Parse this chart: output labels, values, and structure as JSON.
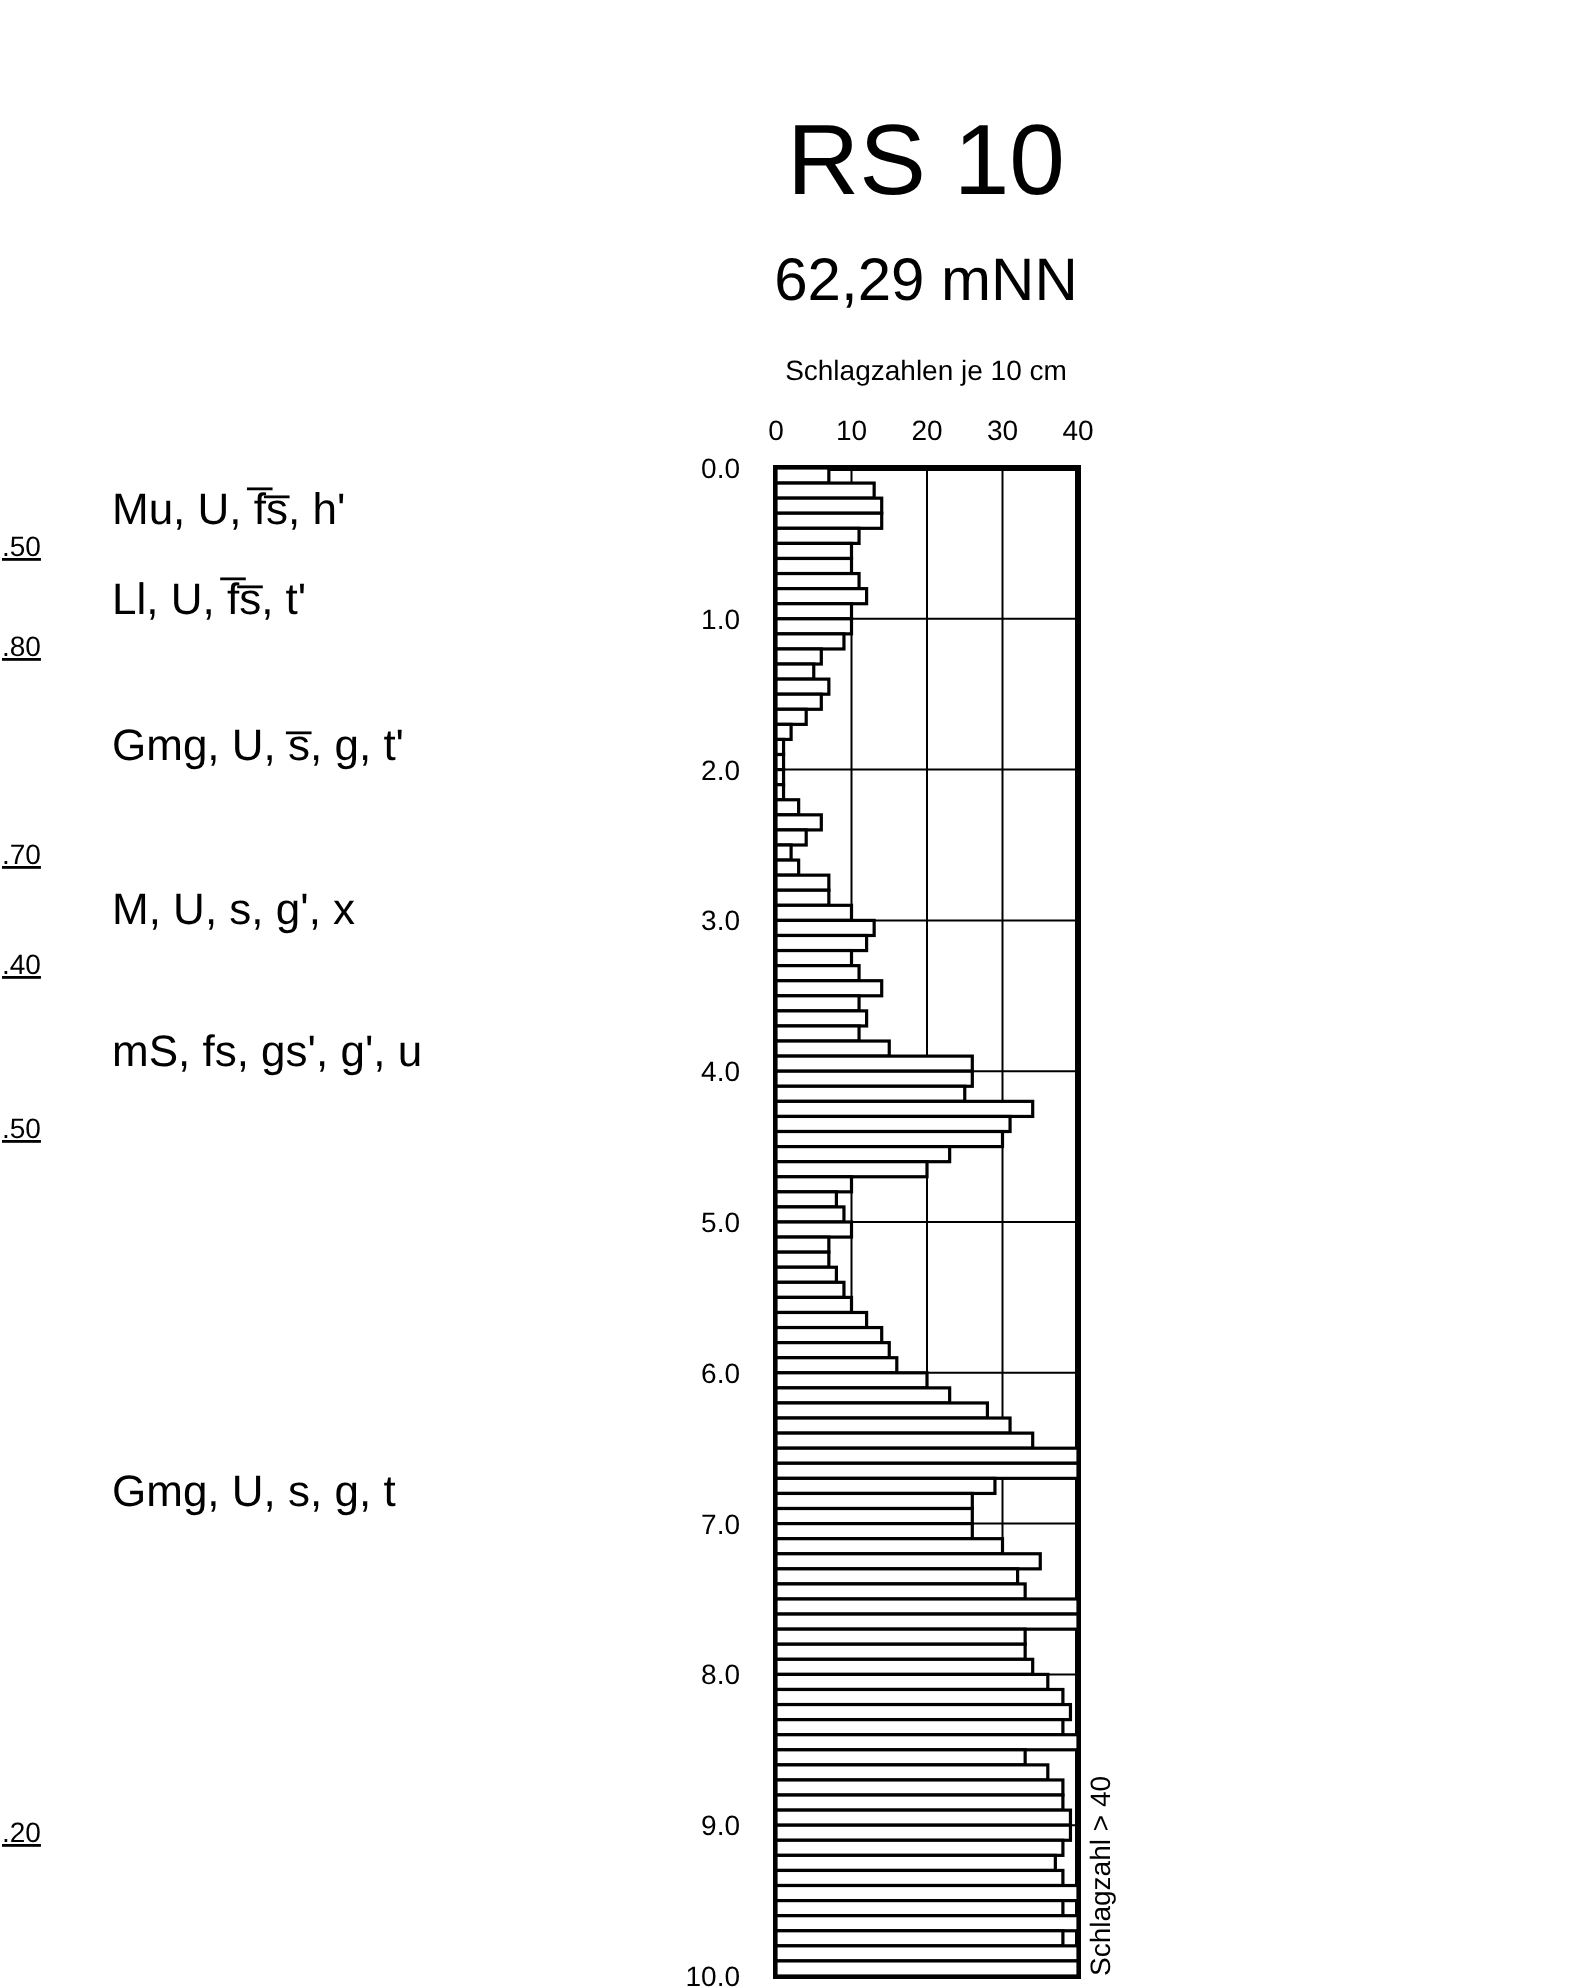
{
  "chart_data": {
    "type": "bar",
    "orientation": "horizontal",
    "title": "RS 10",
    "subtitle": "62,29 mNN",
    "xlabel": "Schlagzahlen je 10 cm",
    "x": [
      0.05,
      0.15,
      0.25,
      0.35,
      0.45,
      0.55,
      0.65,
      0.75,
      0.85,
      0.95,
      1.05,
      1.15,
      1.25,
      1.35,
      1.45,
      1.55,
      1.65,
      1.75,
      1.85,
      1.95,
      2.05,
      2.15,
      2.25,
      2.35,
      2.45,
      2.55,
      2.65,
      2.75,
      2.85,
      2.95,
      3.05,
      3.15,
      3.25,
      3.35,
      3.45,
      3.55,
      3.65,
      3.75,
      3.85,
      3.95,
      4.05,
      4.15,
      4.25,
      4.35,
      4.45,
      4.55,
      4.65,
      4.75,
      4.85,
      4.95,
      5.05,
      5.15,
      5.25,
      5.35,
      5.45,
      5.55,
      5.65,
      5.75,
      5.85,
      5.95,
      6.05,
      6.15,
      6.25,
      6.35,
      6.45,
      6.55,
      6.65,
      6.75,
      6.85,
      6.95,
      7.05,
      7.15,
      7.25,
      7.35,
      7.45,
      7.55,
      7.65,
      7.75,
      7.85,
      7.95,
      8.05,
      8.15,
      8.25,
      8.35,
      8.45,
      8.55,
      8.65,
      8.75,
      8.85,
      8.95,
      9.05,
      9.15,
      9.25,
      9.35,
      9.45,
      9.55,
      9.65,
      9.75,
      9.85,
      9.95
    ],
    "values": [
      7,
      13,
      14,
      14,
      11,
      10,
      10,
      11,
      12,
      10,
      10,
      9,
      6,
      5,
      7,
      6,
      4,
      2,
      1,
      1,
      1,
      1,
      3,
      6,
      4,
      2,
      3,
      7,
      7,
      10,
      13,
      12,
      10,
      11,
      14,
      11,
      12,
      11,
      15,
      26,
      26,
      25,
      34,
      31,
      30,
      23,
      20,
      10,
      8,
      9,
      10,
      7,
      7,
      8,
      9,
      10,
      12,
      14,
      15,
      16,
      20,
      23,
      28,
      31,
      34,
      40,
      40,
      29,
      26,
      26,
      26,
      30,
      35,
      32,
      33,
      40,
      40,
      33,
      33,
      34,
      36,
      38,
      39,
      38,
      40,
      33,
      36,
      38,
      38,
      39,
      39,
      38,
      37,
      38,
      40,
      38,
      40,
      38,
      40,
      40
    ],
    "color": "#ffffff",
    "xlim": [
      0,
      40
    ],
    "xticks": [
      0,
      10,
      20,
      30,
      40
    ],
    "ylim": [
      10,
      0
    ],
    "yticks": [
      {
        "value": 0,
        "label": "0.0"
      },
      {
        "value": 1,
        "label": "1.0"
      },
      {
        "value": 2,
        "label": "2.0"
      },
      {
        "value": 3,
        "label": "3.0"
      },
      {
        "value": 4,
        "label": "4.0"
      },
      {
        "value": 5,
        "label": "5.0"
      },
      {
        "value": 6,
        "label": "6.0"
      },
      {
        "value": 7,
        "label": "7.0"
      },
      {
        "value": 8,
        "label": "8.0"
      },
      {
        "value": 9,
        "label": "9.0"
      },
      {
        "value": 10,
        "label": "10.0"
      }
    ],
    "grid": true,
    "annotations": [
      "Mu, U, f̅s̅, h'",
      ".50",
      "Ll, U, f̅s̅, t'",
      ".80",
      "Gmg, U, s̅, g, t'",
      ".70",
      "M, U, s, g', x",
      ".40",
      "mS, fs, gs', g', u",
      ".50",
      "Gmg, U, s, g, t",
      ".20",
      "Schlagzahl > 40"
    ]
  }
}
